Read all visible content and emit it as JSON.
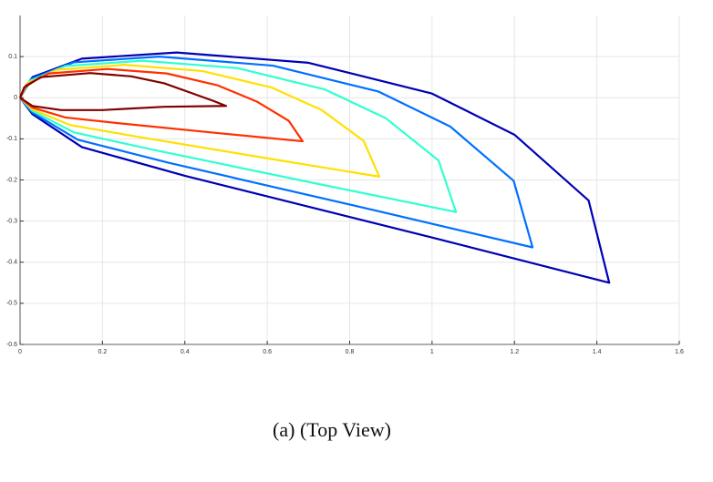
{
  "chart_data": {
    "type": "line",
    "caption": "(a) (Top View)",
    "xlim": [
      0,
      1.6
    ],
    "ylim": [
      -0.6,
      0.2
    ],
    "xticks": [
      0,
      0.2,
      0.4,
      0.6,
      0.8,
      1,
      1.2,
      1.4,
      1.6
    ],
    "yticks": [
      -0.6,
      -0.5,
      -0.4,
      -0.3,
      -0.2,
      -0.1,
      0,
      0.1
    ],
    "grid": true,
    "series": [
      {
        "color": "#0000b4",
        "x": [
          0,
          0.03,
          0.15,
          0.38,
          0.7,
          1.0,
          1.2,
          1.38,
          1.43,
          1.0,
          0.4,
          0.15,
          0.03,
          0
        ],
        "values": [
          0,
          0.05,
          0.095,
          0.11,
          0.085,
          0.01,
          -0.09,
          -0.25,
          -0.45,
          -0.34,
          -0.19,
          -0.12,
          -0.04,
          0
        ]
      },
      {
        "color": "#0070ff",
        "x": [
          0,
          0.026,
          0.13,
          0.338,
          0.614,
          0.87,
          1.044,
          1.198,
          1.244,
          0.87,
          0.36,
          0.14,
          0.03,
          0
        ],
        "values": [
          0,
          0.045,
          0.086,
          0.1,
          0.078,
          0.015,
          -0.07,
          -0.202,
          -0.364,
          -0.276,
          -0.158,
          -0.102,
          -0.036,
          0
        ]
      },
      {
        "color": "#30ffd0",
        "x": [
          0,
          0.022,
          0.11,
          0.296,
          0.528,
          0.74,
          0.888,
          1.016,
          1.058,
          0.74,
          0.32,
          0.13,
          0.03,
          0
        ],
        "values": [
          0,
          0.04,
          0.077,
          0.09,
          0.072,
          0.02,
          -0.05,
          -0.153,
          -0.278,
          -0.213,
          -0.126,
          -0.084,
          -0.032,
          0
        ]
      },
      {
        "color": "#ffe000",
        "x": [
          0,
          0.018,
          0.09,
          0.254,
          0.442,
          0.61,
          0.732,
          0.834,
          0.872,
          0.61,
          0.28,
          0.12,
          0.03,
          0
        ],
        "values": [
          0,
          0.035,
          0.068,
          0.08,
          0.065,
          0.025,
          -0.03,
          -0.105,
          -0.192,
          -0.149,
          -0.094,
          -0.066,
          -0.028,
          0
        ]
      },
      {
        "color": "#ff3000",
        "x": [
          0,
          0.014,
          0.07,
          0.212,
          0.356,
          0.48,
          0.576,
          0.652,
          0.686,
          0.48,
          0.24,
          0.11,
          0.03,
          0
        ],
        "values": [
          0,
          0.03,
          0.059,
          0.07,
          0.059,
          0.03,
          -0.01,
          -0.056,
          -0.106,
          -0.086,
          -0.062,
          -0.048,
          -0.024,
          0
        ]
      },
      {
        "color": "#800000",
        "x": [
          0,
          0.01,
          0.05,
          0.17,
          0.27,
          0.35,
          0.42,
          0.47,
          0.5,
          0.35,
          0.2,
          0.1,
          0.03,
          0
        ],
        "values": [
          0,
          0.025,
          0.05,
          0.06,
          0.052,
          0.035,
          0.01,
          -0.008,
          -0.02,
          -0.022,
          -0.03,
          -0.03,
          -0.02,
          0
        ]
      }
    ]
  }
}
